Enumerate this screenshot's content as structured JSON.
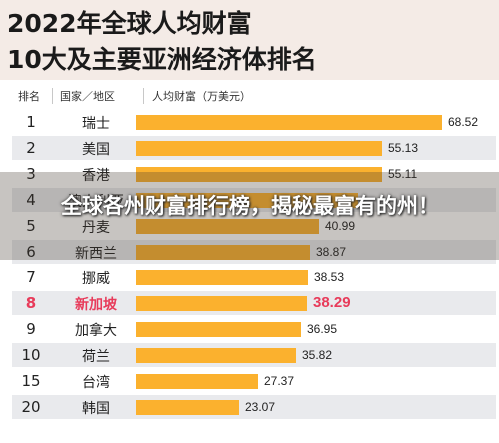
{
  "header": {
    "title_line1": "2022年全球人均财富",
    "title_line2": "10大及主要亚洲经济体排名"
  },
  "columns": {
    "rank": "排名",
    "country": "国家／地区",
    "value": "人均财富（万美元）"
  },
  "overlay": {
    "caption": "全球各州财富排行榜，揭秘最富有的州！"
  },
  "colors": {
    "bar": "#fbb12e",
    "highlight": "#e83b5a",
    "stripe": "#e9eaed",
    "header_bg": "#f4ebe6"
  },
  "chart_data": {
    "type": "bar",
    "orientation": "horizontal",
    "title": "2022年全球人均财富 10大及主要亚洲经济体排名",
    "ylabel": "人均财富（万美元）",
    "highlight_category": "新加坡",
    "xlim": [
      0,
      70
    ],
    "ranks": [
      "1",
      "2",
      "3",
      "4",
      "5",
      "6",
      "7",
      "8",
      "9",
      "10",
      "15",
      "20"
    ],
    "categories": [
      "瑞士",
      "美国",
      "香港",
      "澳大利亚",
      "丹麦",
      "新西兰",
      "挪威",
      "新加坡",
      "加拿大",
      "荷兰",
      "台湾",
      "韩国"
    ],
    "values": [
      68.52,
      55.13,
      55.11,
      49.7,
      40.99,
      38.87,
      38.53,
      38.29,
      36.95,
      35.82,
      27.37,
      23.07
    ],
    "value_labels": [
      "68.52",
      "55.13",
      "55.11",
      "",
      "40.99",
      "38.87",
      "38.53",
      "38.29",
      "36.95",
      "35.82",
      "27.37",
      "23.07"
    ]
  }
}
